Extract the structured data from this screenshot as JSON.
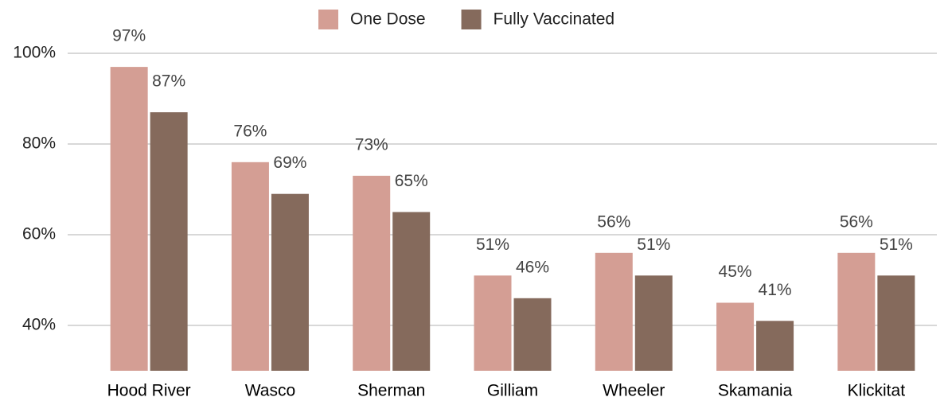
{
  "chart_data": {
    "type": "bar",
    "categories": [
      "Hood River",
      "Wasco",
      "Sherman",
      "Gilliam",
      "Wheeler",
      "Skamania",
      "Klickitat"
    ],
    "series": [
      {
        "name": "One Dose",
        "color": "#d49e94",
        "values": [
          97,
          76,
          73,
          51,
          56,
          45,
          56
        ],
        "value_labels": [
          "97%",
          "76%",
          "73%",
          "51%",
          "56%",
          "45%",
          "56%"
        ]
      },
      {
        "name": "Fully Vaccinated",
        "color": "#856a5c",
        "values": [
          87,
          69,
          65,
          46,
          51,
          41,
          51
        ],
        "value_labels": [
          "87%",
          "69%",
          "65%",
          "46%",
          "51%",
          "41%",
          "51%"
        ]
      }
    ],
    "ylim": [
      30,
      100
    ],
    "yticks": [
      {
        "value": 40,
        "label": "40%"
      },
      {
        "value": 60,
        "label": "60%"
      },
      {
        "value": 80,
        "label": "80%"
      },
      {
        "value": 100,
        "label": "100%"
      }
    ],
    "grid": true,
    "legend": "top"
  }
}
